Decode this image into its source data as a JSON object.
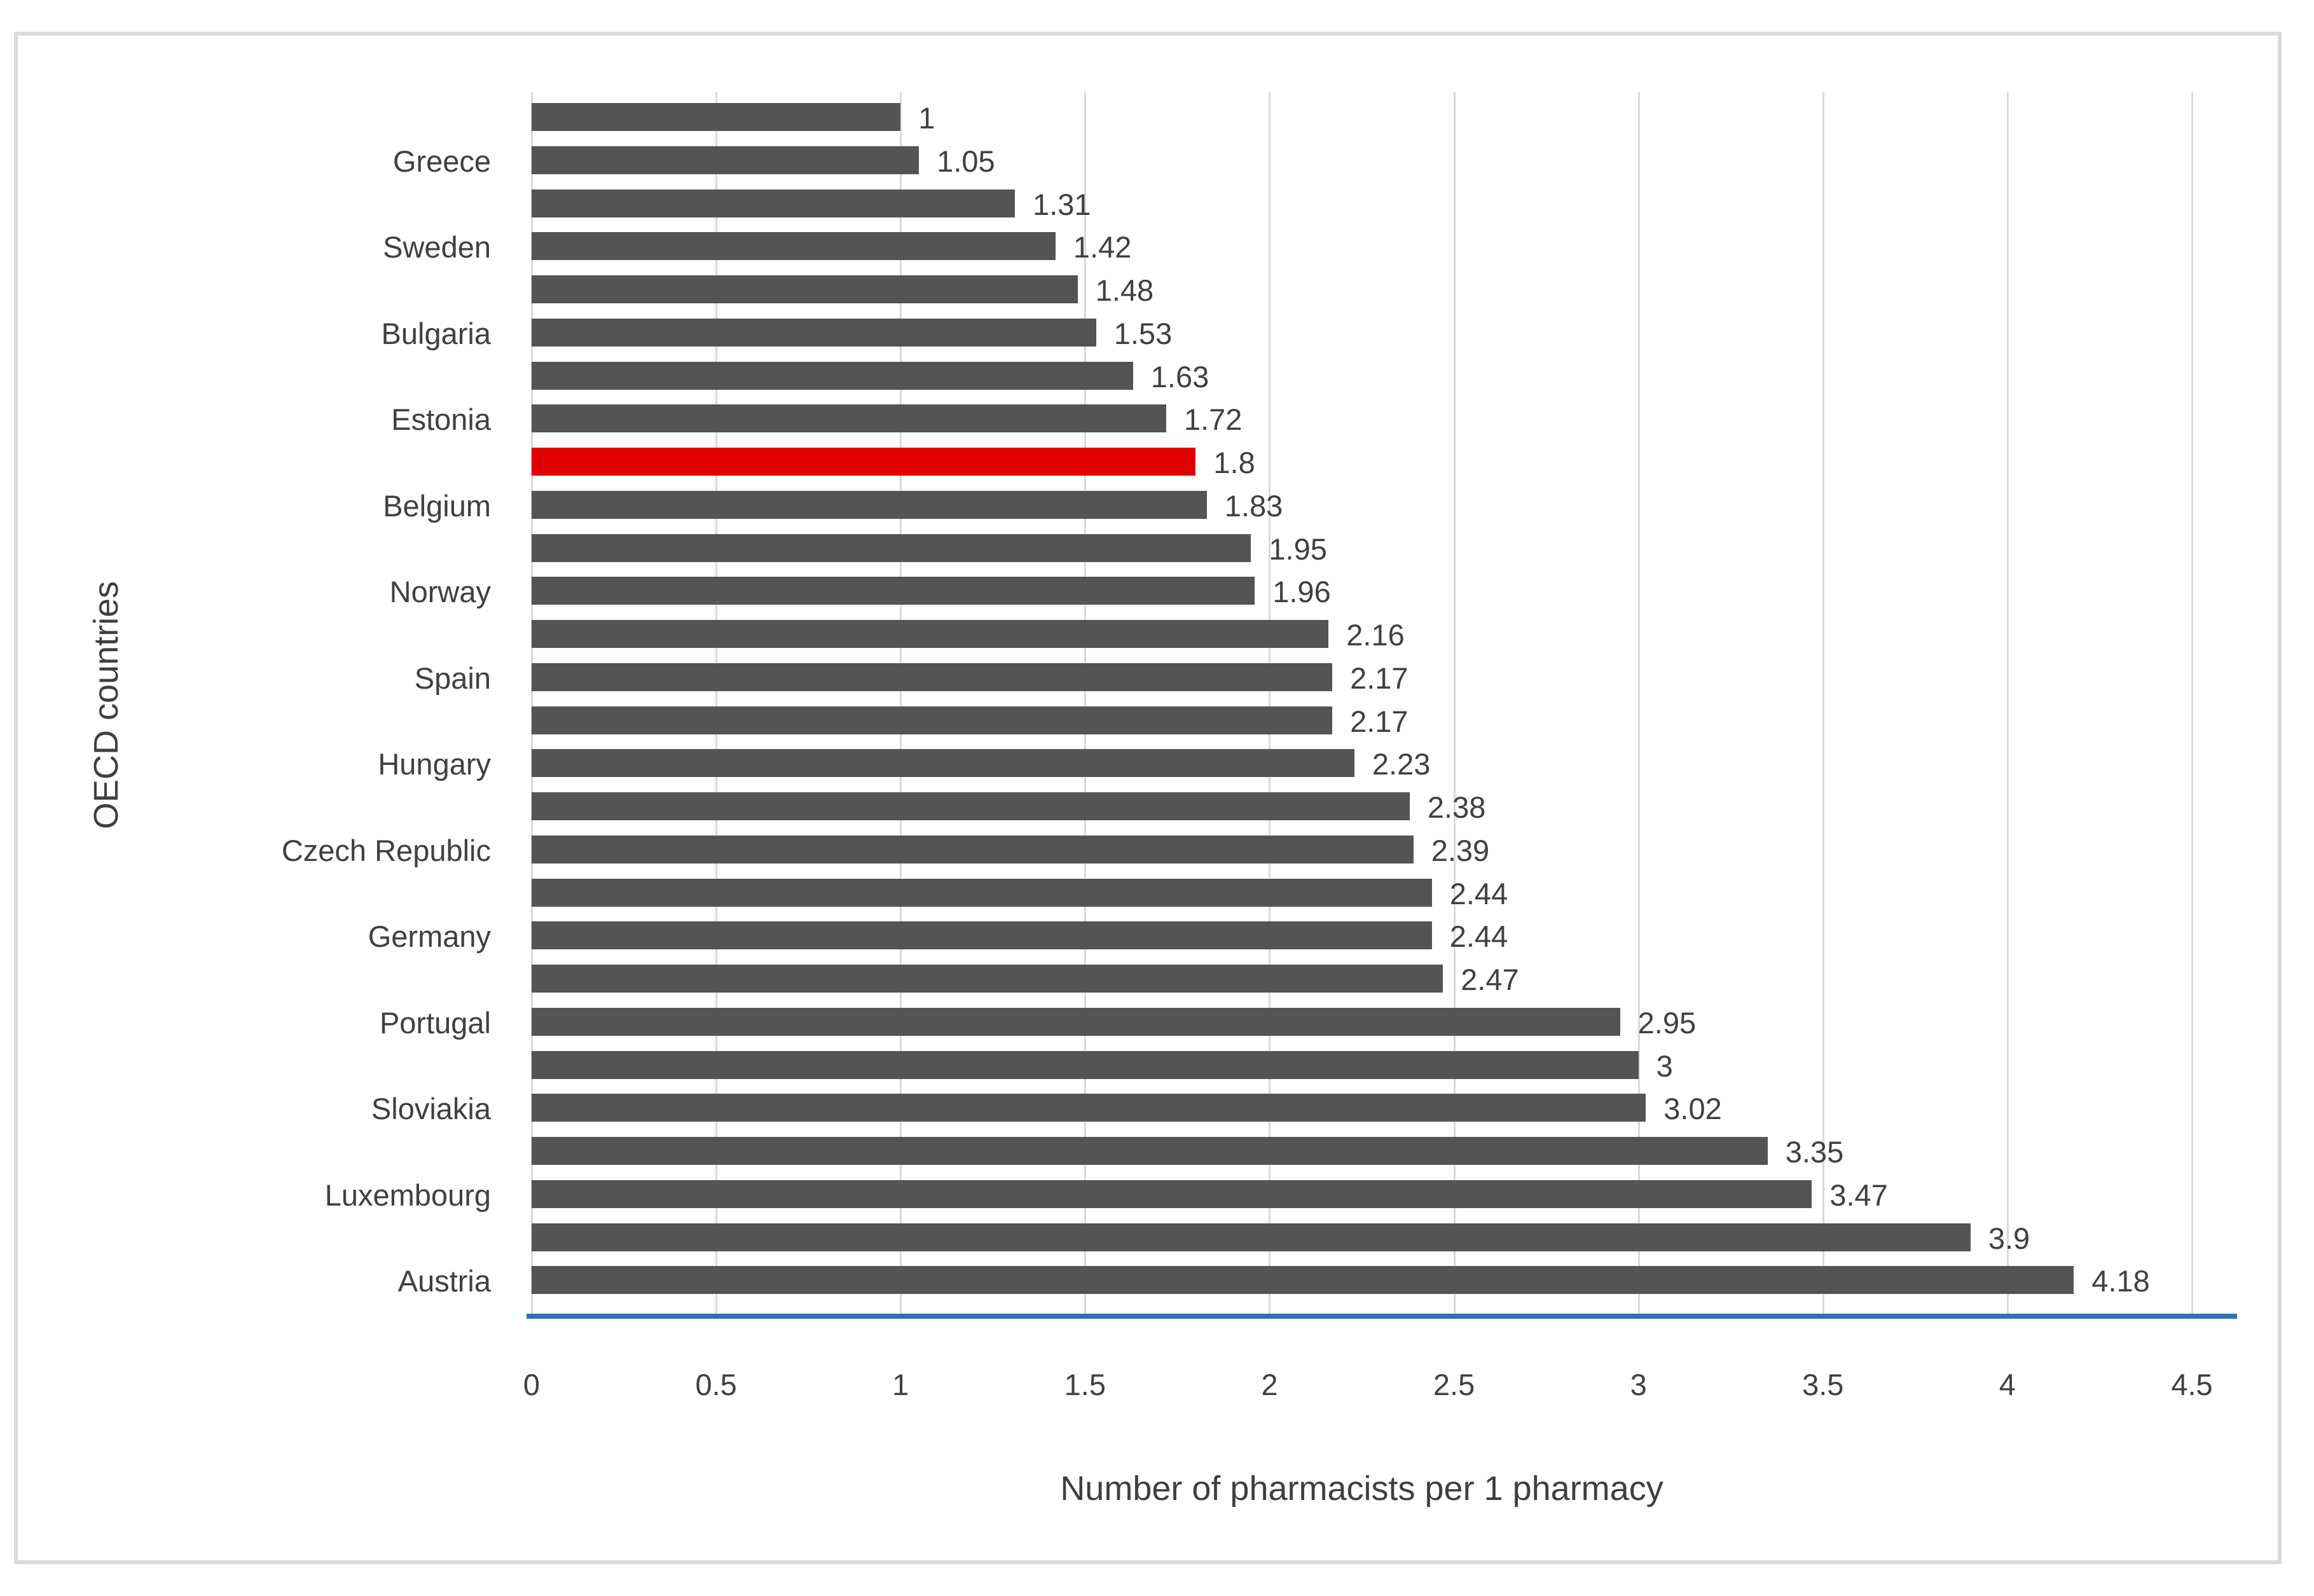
{
  "chart_data": {
    "type": "bar",
    "orientation": "horizontal",
    "title": "",
    "xlabel": "Number of pharmacists per 1 pharmacy",
    "ylabel": "OECD countries",
    "xlim": [
      0,
      4.5
    ],
    "xticks": [
      "0",
      "0.5",
      "1",
      "1.5",
      "2",
      "2.5",
      "3",
      "3.5",
      "4",
      "4.5"
    ],
    "grid": "vertical-gridlines-only",
    "legend": "none",
    "category_label_interval": 2,
    "bars": [
      {
        "country": "",
        "value": 1,
        "label": "1"
      },
      {
        "country": "Greece",
        "value": 1.05,
        "label": "1.05"
      },
      {
        "country": "",
        "value": 1.31,
        "label": "1.31"
      },
      {
        "country": "Sweden",
        "value": 1.42,
        "label": "1.42"
      },
      {
        "country": "",
        "value": 1.48,
        "label": "1.48"
      },
      {
        "country": "Bulgaria",
        "value": 1.53,
        "label": "1.53"
      },
      {
        "country": "",
        "value": 1.63,
        "label": "1.63"
      },
      {
        "country": "Estonia",
        "value": 1.72,
        "label": "1.72"
      },
      {
        "country": "",
        "value": 1.8,
        "label": "1.8",
        "highlight": true
      },
      {
        "country": "Belgium",
        "value": 1.83,
        "label": "1.83"
      },
      {
        "country": "",
        "value": 1.95,
        "label": "1.95"
      },
      {
        "country": "Norway",
        "value": 1.96,
        "label": "1.96"
      },
      {
        "country": "",
        "value": 2.16,
        "label": "2.16"
      },
      {
        "country": "Spain",
        "value": 2.17,
        "label": "2.17"
      },
      {
        "country": "",
        "value": 2.17,
        "label": "2.17"
      },
      {
        "country": "Hungary",
        "value": 2.23,
        "label": "2.23"
      },
      {
        "country": "",
        "value": 2.38,
        "label": "2.38"
      },
      {
        "country": "Czech Republic",
        "value": 2.39,
        "label": "2.39"
      },
      {
        "country": "",
        "value": 2.44,
        "label": "2.44"
      },
      {
        "country": "Germany",
        "value": 2.44,
        "label": "2.44"
      },
      {
        "country": "",
        "value": 2.47,
        "label": "2.47"
      },
      {
        "country": "Portugal",
        "value": 2.95,
        "label": "2.95"
      },
      {
        "country": "",
        "value": 3,
        "label": "3"
      },
      {
        "country": "Sloviakia",
        "value": 3.02,
        "label": "3.02"
      },
      {
        "country": "",
        "value": 3.35,
        "label": "3.35"
      },
      {
        "country": "Luxembourg",
        "value": 3.47,
        "label": "3.47"
      },
      {
        "country": "",
        "value": 3.9,
        "label": "3.9"
      },
      {
        "country": "Austria",
        "value": 4.18,
        "label": "4.18"
      }
    ],
    "colors": {
      "bar": "#545454",
      "highlight": "#e10000",
      "gridline": "#d9d9d9",
      "axis_line_blue": "#2e74b5",
      "text": "#404040",
      "frame_border": "#dadada",
      "background": "#ffffff"
    }
  }
}
